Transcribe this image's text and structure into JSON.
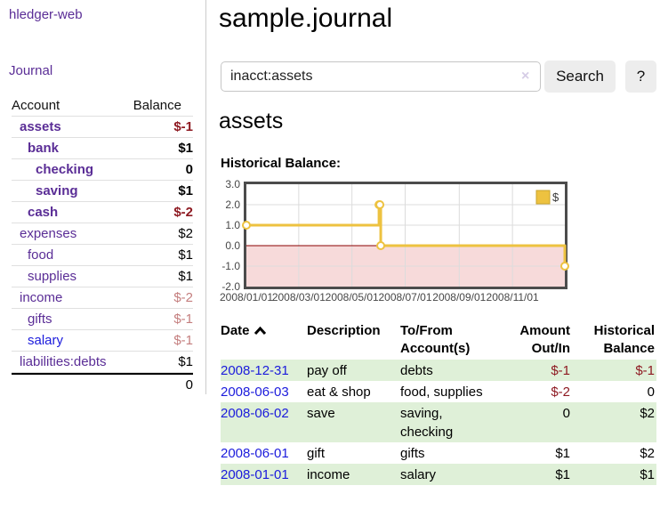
{
  "app": {
    "title": "hledger-web",
    "nav_journal": "Journal"
  },
  "sidebar": {
    "accounts_header": {
      "account": "Account",
      "balance": "Balance"
    },
    "accounts": [
      {
        "name": "assets",
        "indent": 1,
        "balance": "$-1",
        "bold": true,
        "neg": "strong"
      },
      {
        "name": "bank",
        "indent": 2,
        "balance": "$1",
        "bold": true
      },
      {
        "name": "checking",
        "indent": 3,
        "balance": "0",
        "bold": true
      },
      {
        "name": "saving",
        "indent": 3,
        "balance": "$1",
        "bold": true
      },
      {
        "name": "cash",
        "indent": 2,
        "balance": "$-2",
        "bold": true,
        "neg": "strong"
      },
      {
        "name": "expenses",
        "indent": 1,
        "balance": "$2"
      },
      {
        "name": "food",
        "indent": 2,
        "balance": "$1"
      },
      {
        "name": "supplies",
        "indent": 2,
        "balance": "$1"
      },
      {
        "name": "income",
        "indent": 1,
        "balance": "$-2",
        "neg": "soft"
      },
      {
        "name": "gifts",
        "indent": 2,
        "balance": "$-1",
        "neg": "soft"
      },
      {
        "name": "salary",
        "indent": 2,
        "balance": "$-1",
        "neg": "soft",
        "link": "blue"
      },
      {
        "name": "liabilities:debts",
        "indent": 1,
        "balance": "$1"
      }
    ],
    "total": "0"
  },
  "header": {
    "title": "sample.journal"
  },
  "search": {
    "value": "inacct:assets",
    "clear_icon": "×",
    "button": "Search",
    "help": "?"
  },
  "account_page": {
    "heading": "assets",
    "chart_label": "Historical Balance:"
  },
  "chart_data": {
    "type": "line",
    "step": true,
    "title": "Historical Balance:",
    "series": [
      {
        "name": "$",
        "color": "#edc240",
        "points": [
          [
            "2008-01-01",
            1
          ],
          [
            "2008-06-01",
            2
          ],
          [
            "2008-06-02",
            2
          ],
          [
            "2008-06-03",
            0
          ],
          [
            "2008-12-31",
            -1
          ]
        ]
      }
    ],
    "xlim": [
      "2008-01-01",
      "2008-12-31"
    ],
    "ylim": [
      -2,
      3
    ],
    "yticks": [
      "3.0",
      "2.0",
      "1.0",
      "0.0",
      "-1.0",
      "-2.0"
    ],
    "xticks": [
      "2008/01/01",
      "2008/03/01",
      "2008/05/01",
      "2008/07/01",
      "2008/09/01",
      "2008/11/01"
    ],
    "grid": true,
    "legend_position": "top-right",
    "colors": {
      "negative_region": "#f7dada",
      "zero_line": "#8b0000",
      "grid": "#dcdcdc",
      "border": "#4c4c4c",
      "legend_swatch_border": "#c9a42e",
      "marker_fill": "#ffffff"
    }
  },
  "register": {
    "headers": [
      {
        "label": "Date",
        "sort_icon": true
      },
      {
        "label": "Description"
      },
      {
        "label": "To/From\nAccount(s)"
      },
      {
        "label": "Amount\nOut/In",
        "align": "right"
      },
      {
        "label": "Historical\nBalance",
        "align": "right"
      }
    ],
    "rows": [
      {
        "date": "2008-12-31",
        "description": "pay off",
        "accounts": "debts",
        "amount": "$-1",
        "balance": "$-1",
        "amount_neg": true,
        "balance_neg": true
      },
      {
        "date": "2008-06-03",
        "description": "eat & shop",
        "accounts": "food, supplies",
        "amount": "$-2",
        "balance": "0",
        "amount_neg": true
      },
      {
        "date": "2008-06-02",
        "description": "save",
        "accounts": "saving,\nchecking",
        "amount": "0",
        "balance": "$2"
      },
      {
        "date": "2008-06-01",
        "description": "gift",
        "accounts": "gifts",
        "amount": "$1",
        "balance": "$2"
      },
      {
        "date": "2008-01-01",
        "description": "income",
        "accounts": "salary",
        "amount": "$1",
        "balance": "$1"
      }
    ]
  }
}
